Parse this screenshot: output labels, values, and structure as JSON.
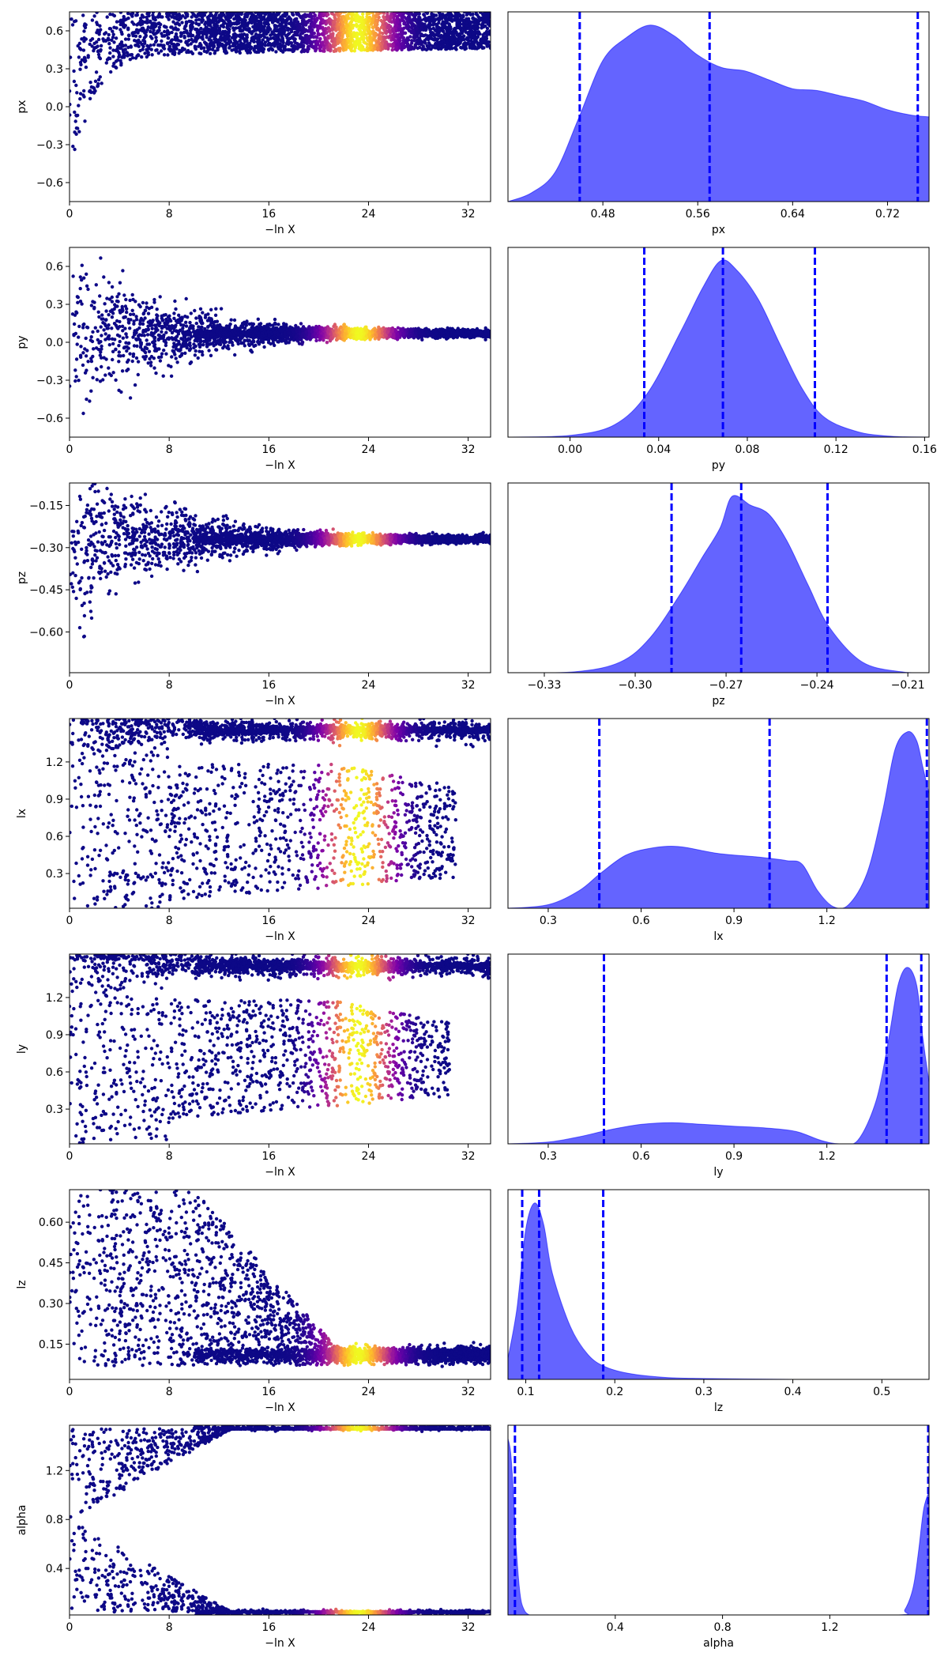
{
  "chart_data": [
    {
      "type": "scatter",
      "xlabel": "−ln X",
      "ylabel": "px",
      "xlim": [
        0,
        33.8
      ],
      "ylim": [
        -0.75,
        0.75
      ],
      "xticks": [
        0,
        8,
        16,
        24,
        32
      ],
      "xtick_labels": [
        "0",
        "8",
        "16",
        "24",
        "32"
      ],
      "yticks": [
        -0.6,
        -0.3,
        0.0,
        0.3,
        0.6
      ],
      "ytick_labels": [
        "−0.6",
        "−0.3",
        "0.0",
        "0.3",
        "0.6"
      ],
      "colormap": "plasma",
      "shape": "ceiling",
      "band": {
        "center": 0.565,
        "lo_end": 0.42,
        "hi_end": 0.71,
        "top": 0.75,
        "bottom": -0.75
      },
      "x_end": 33.8
    },
    {
      "type": "area",
      "xlabel": "px",
      "xlim": [
        0.4,
        0.755
      ],
      "xticks": [
        0.48,
        0.56,
        0.64,
        0.72
      ],
      "xtick_labels": [
        "0.48",
        "0.56",
        "0.64",
        "0.72"
      ],
      "x": [
        0.4,
        0.42,
        0.44,
        0.46,
        0.48,
        0.5,
        0.52,
        0.54,
        0.56,
        0.58,
        0.6,
        0.62,
        0.64,
        0.66,
        0.68,
        0.7,
        0.72,
        0.74,
        0.755
      ],
      "density": [
        0.0,
        0.05,
        0.17,
        0.48,
        0.8,
        0.93,
        1.0,
        0.94,
        0.83,
        0.76,
        0.74,
        0.69,
        0.64,
        0.63,
        0.6,
        0.57,
        0.52,
        0.49,
        0.48
      ],
      "vlines": [
        0.4605,
        0.57,
        0.7455
      ],
      "fill_color": "#5c5cff",
      "line_color": "#0000ff"
    },
    {
      "type": "scatter",
      "xlabel": "−ln X",
      "ylabel": "py",
      "xlim": [
        0,
        33.8
      ],
      "ylim": [
        -0.75,
        0.75
      ],
      "xticks": [
        0,
        8,
        16,
        24,
        32
      ],
      "xtick_labels": [
        "0",
        "8",
        "16",
        "24",
        "32"
      ],
      "yticks": [
        -0.6,
        -0.3,
        0.0,
        0.3,
        0.6
      ],
      "ytick_labels": [
        "−0.6",
        "−0.3",
        "0.0",
        "0.3",
        "0.6"
      ],
      "colormap": "plasma",
      "shape": "funnel",
      "band": {
        "center": 0.07,
        "lo_end": 0.06,
        "hi_end": 0.08,
        "top": 0.75,
        "bottom": -0.75
      },
      "x_end": 33.8
    },
    {
      "type": "area",
      "xlabel": "py",
      "xlim": [
        -0.028,
        0.162
      ],
      "xticks": [
        0.0,
        0.04,
        0.08,
        0.12,
        0.16
      ],
      "xtick_labels": [
        "0.00",
        "0.04",
        "0.08",
        "0.12",
        "0.16"
      ],
      "x": [
        -0.028,
        0.0,
        0.02,
        0.035,
        0.05,
        0.06,
        0.068,
        0.075,
        0.085,
        0.095,
        0.105,
        0.115,
        0.13,
        0.145,
        0.162
      ],
      "density": [
        0.0,
        0.01,
        0.07,
        0.25,
        0.6,
        0.85,
        1.0,
        0.95,
        0.78,
        0.52,
        0.27,
        0.11,
        0.03,
        0.005,
        0.0
      ],
      "vlines": [
        0.0335,
        0.069,
        0.1105
      ],
      "fill_color": "#5c5cff",
      "line_color": "#0000ff"
    },
    {
      "type": "scatter",
      "xlabel": "−ln X",
      "ylabel": "pz",
      "xlim": [
        0,
        33.8
      ],
      "ylim": [
        -0.745,
        -0.07
      ],
      "xticks": [
        0,
        8,
        16,
        24,
        32
      ],
      "xtick_labels": [
        "0",
        "8",
        "16",
        "24",
        "32"
      ],
      "yticks": [
        -0.6,
        -0.45,
        -0.3,
        -0.15
      ],
      "ytick_labels": [
        "−0.60",
        "−0.45",
        "−0.30",
        "−0.15"
      ],
      "colormap": "plasma",
      "shape": "funnel",
      "band": {
        "center": -0.27,
        "lo_end": -0.28,
        "hi_end": -0.26,
        "top": -0.07,
        "bottom": -0.745
      },
      "x_end": 33.8
    },
    {
      "type": "area",
      "xlabel": "pz",
      "xlim": [
        -0.342,
        -0.203
      ],
      "xticks": [
        -0.33,
        -0.3,
        -0.27,
        -0.24,
        -0.21
      ],
      "xtick_labels": [
        "−0.33",
        "−0.30",
        "−0.27",
        "−0.24",
        "−0.21"
      ],
      "x": [
        -0.342,
        -0.32,
        -0.305,
        -0.295,
        -0.285,
        -0.278,
        -0.272,
        -0.268,
        -0.262,
        -0.256,
        -0.25,
        -0.243,
        -0.236,
        -0.225,
        -0.212,
        -0.203
      ],
      "density": [
        0.0,
        0.005,
        0.06,
        0.2,
        0.45,
        0.65,
        0.82,
        1.0,
        0.95,
        0.9,
        0.75,
        0.5,
        0.26,
        0.06,
        0.005,
        0.0
      ],
      "vlines": [
        -0.288,
        -0.265,
        -0.2365
      ],
      "fill_color": "#5c5cff",
      "line_color": "#0000ff"
    },
    {
      "type": "scatter",
      "xlabel": "−ln X",
      "ylabel": "lx",
      "xlim": [
        0,
        33.8
      ],
      "ylim": [
        0.02,
        1.55
      ],
      "xticks": [
        0,
        8,
        16,
        24,
        32
      ],
      "xtick_labels": [
        "0",
        "8",
        "16",
        "24",
        "32"
      ],
      "yticks": [
        0.3,
        0.6,
        0.9,
        1.2
      ],
      "ytick_labels": [
        "0.3",
        "0.6",
        "0.9",
        "1.2"
      ],
      "colormap": "plasma",
      "shape": "split",
      "band": {
        "center": 1.45,
        "lo_end": 1.42,
        "hi_end": 1.48,
        "top": 1.55,
        "bottom": 0.02
      },
      "blob": {
        "lo": 0.27,
        "hi": 1.18,
        "end": 31.0
      },
      "x_end": 33.8
    },
    {
      "type": "area",
      "xlabel": "lx",
      "xlim": [
        0.17,
        1.53
      ],
      "xticks": [
        0.3,
        0.6,
        0.9,
        1.2
      ],
      "xtick_labels": [
        "0.3",
        "0.6",
        "0.9",
        "1.2"
      ],
      "x": [
        0.17,
        0.3,
        0.4,
        0.47,
        0.55,
        0.63,
        0.72,
        0.85,
        0.98,
        1.07,
        1.12,
        1.17,
        1.22,
        1.27,
        1.33,
        1.38,
        1.42,
        1.46,
        1.49,
        1.51,
        1.53
      ],
      "density": [
        0.0,
        0.02,
        0.1,
        0.2,
        0.3,
        0.34,
        0.35,
        0.31,
        0.29,
        0.27,
        0.25,
        0.1,
        0.01,
        0.02,
        0.2,
        0.55,
        0.9,
        1.0,
        0.95,
        0.8,
        0.65
      ],
      "vlines": [
        0.465,
        1.015,
        1.523
      ],
      "fill_color": "#5c5cff",
      "line_color": "#0000ff"
    },
    {
      "type": "scatter",
      "xlabel": "−ln X",
      "ylabel": "ly",
      "xlim": [
        0,
        33.8
      ],
      "ylim": [
        0.02,
        1.55
      ],
      "xticks": [
        0,
        8,
        16,
        24,
        32
      ],
      "xtick_labels": [
        "0",
        "8",
        "16",
        "24",
        "32"
      ],
      "yticks": [
        0.3,
        0.6,
        0.9,
        1.2
      ],
      "ytick_labels": [
        "0.3",
        "0.6",
        "0.9",
        "1.2"
      ],
      "colormap": "plasma",
      "shape": "split",
      "band": {
        "center": 1.45,
        "lo_end": 1.42,
        "hi_end": 1.48,
        "top": 1.55,
        "bottom": 0.02
      },
      "blob": {
        "lo": 0.4,
        "hi": 1.18,
        "end": 30.5
      },
      "x_end": 33.8
    },
    {
      "type": "area",
      "xlabel": "ly",
      "xlim": [
        0.17,
        1.53
      ],
      "xticks": [
        0.3,
        0.6,
        0.9,
        1.2
      ],
      "xtick_labels": [
        "0.3",
        "0.6",
        "0.9",
        "1.2"
      ],
      "x": [
        0.17,
        0.3,
        0.4,
        0.5,
        0.6,
        0.7,
        0.8,
        0.9,
        1.0,
        1.1,
        1.18,
        1.24,
        1.3,
        1.36,
        1.4,
        1.43,
        1.46,
        1.49,
        1.51,
        1.53
      ],
      "density": [
        0.0,
        0.01,
        0.04,
        0.08,
        0.11,
        0.12,
        0.11,
        0.1,
        0.09,
        0.07,
        0.02,
        0.0,
        0.02,
        0.25,
        0.6,
        0.9,
        1.0,
        0.9,
        0.6,
        0.35
      ],
      "vlines": [
        0.48,
        1.393,
        1.505
      ],
      "fill_color": "#5c5cff",
      "line_color": "#0000ff"
    },
    {
      "type": "scatter",
      "xlabel": "−ln X",
      "ylabel": "lz",
      "xlim": [
        0,
        33.8
      ],
      "ylim": [
        0.02,
        0.72
      ],
      "xticks": [
        0,
        8,
        16,
        24,
        32
      ],
      "xtick_labels": [
        "0",
        "8",
        "16",
        "24",
        "32"
      ],
      "yticks": [
        0.15,
        0.3,
        0.45,
        0.6
      ],
      "ytick_labels": [
        "0.15",
        "0.30",
        "0.45",
        "0.60"
      ],
      "colormap": "plasma",
      "shape": "floor",
      "band": {
        "center": 0.11,
        "lo_end": 0.09,
        "hi_end": 0.13,
        "top": 0.72,
        "bottom": 0.02
      },
      "x_end": 33.8
    },
    {
      "type": "area",
      "xlabel": "lz",
      "xlim": [
        0.08,
        0.553
      ],
      "xticks": [
        0.1,
        0.2,
        0.3,
        0.4,
        0.5
      ],
      "xtick_labels": [
        "0.1",
        "0.2",
        "0.3",
        "0.4",
        "0.5"
      ],
      "x": [
        0.08,
        0.09,
        0.1,
        0.11,
        0.12,
        0.13,
        0.15,
        0.17,
        0.19,
        0.22,
        0.26,
        0.3,
        0.4,
        0.553
      ],
      "density": [
        0.12,
        0.4,
        0.85,
        1.0,
        0.88,
        0.6,
        0.3,
        0.14,
        0.07,
        0.03,
        0.01,
        0.005,
        0.0,
        0.0
      ],
      "vlines": [
        0.096,
        0.115,
        0.187
      ],
      "fill_color": "#5c5cff",
      "line_color": "#0000ff"
    },
    {
      "type": "scatter",
      "xlabel": "−ln X",
      "ylabel": "alpha",
      "xlim": [
        0,
        33.8
      ],
      "ylim": [
        0.02,
        1.57
      ],
      "xticks": [
        0,
        8,
        16,
        24,
        32
      ],
      "xtick_labels": [
        "0",
        "8",
        "16",
        "24",
        "32"
      ],
      "yticks": [
        0.4,
        0.8,
        1.2
      ],
      "ytick_labels": [
        "0.4",
        "0.8",
        "1.2"
      ],
      "colormap": "plasma",
      "shape": "fork",
      "band": {
        "center": 1.55,
        "lo_end": 1.54,
        "hi_end": 1.57,
        "top": 1.57,
        "bottom": 0.02
      },
      "band2": {
        "center": 0.04,
        "lo_end": 0.02,
        "hi_end": 0.06
      },
      "x_end": 33.8
    },
    {
      "type": "area",
      "xlabel": "alpha",
      "xlim": [
        0.0,
        1.57
      ],
      "xticks": [
        0.4,
        0.8,
        1.2
      ],
      "xtick_labels": [
        "0.4",
        "0.8",
        "1.2"
      ],
      "x": [
        0.0,
        0.01,
        0.02,
        0.03,
        0.045,
        0.06,
        0.08,
        0.1,
        0.5,
        1.0,
        1.45,
        1.48,
        1.51,
        1.53,
        1.55,
        1.57
      ],
      "density": [
        1.0,
        0.92,
        0.7,
        0.4,
        0.12,
        0.03,
        0.0,
        0.0,
        0.0,
        0.0,
        0.0,
        0.03,
        0.15,
        0.35,
        0.6,
        0.7
      ],
      "vlines": [
        0.026,
        1.567
      ],
      "fill_color": "#5c5cff",
      "line_color": "#0000ff"
    }
  ]
}
